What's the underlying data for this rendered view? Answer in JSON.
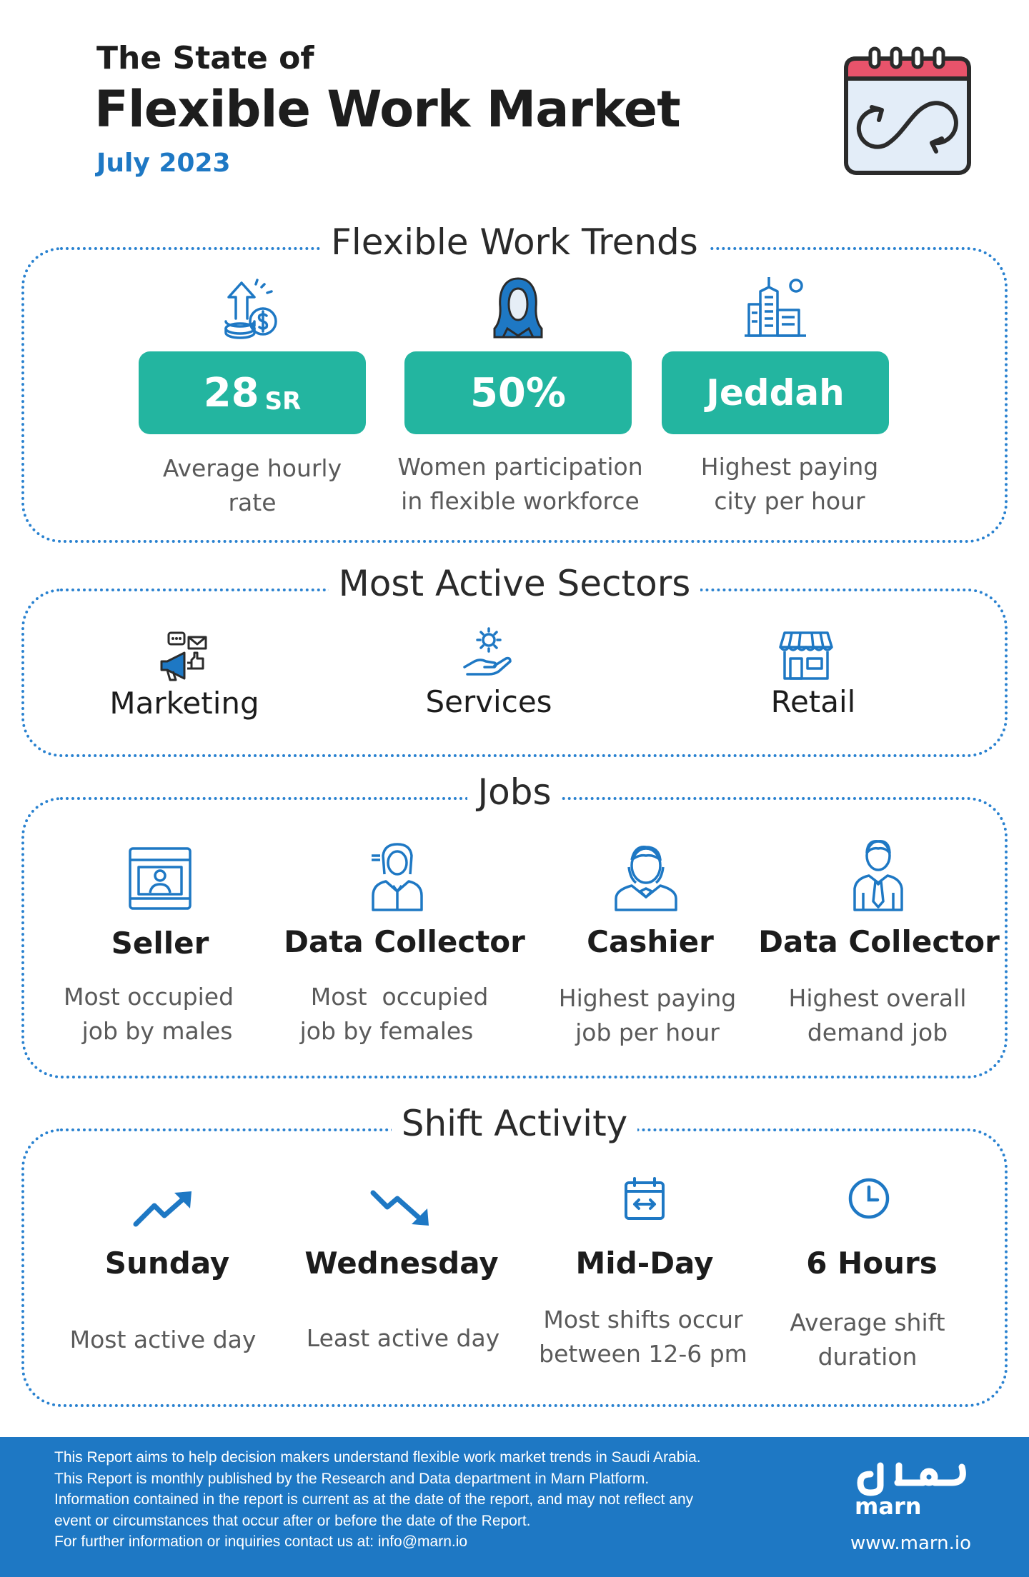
{
  "header": {
    "subtitle": "The State of",
    "title": "Flexible Work Market",
    "date": "July 2023",
    "icon": "calendar-cycle-icon"
  },
  "trends": {
    "title": "Flexible Work Trends",
    "items": [
      {
        "value": "28",
        "unit": "SR",
        "caption_1": "Average hourly",
        "caption_2": "rate",
        "icon": "money-growth-icon"
      },
      {
        "value": "50%",
        "caption_1": "Women participation",
        "caption_2": "in flexible workforce",
        "icon": "woman-hijab-icon"
      },
      {
        "value": "Jeddah",
        "caption_1": "Highest paying",
        "caption_2": "city per hour",
        "icon": "city-buildings-icon"
      }
    ]
  },
  "sectors": {
    "title": "Most Active Sectors",
    "items": [
      {
        "label": "Marketing",
        "icon": "megaphone-icon"
      },
      {
        "label": "Services",
        "icon": "service-hand-gear-icon"
      },
      {
        "label": "Retail",
        "icon": "storefront-icon"
      }
    ]
  },
  "jobs": {
    "title": "Jobs",
    "items": [
      {
        "label": "Seller",
        "caption_1": "Most occupied",
        "caption_2": "job by males",
        "icon": "seller-booth-icon"
      },
      {
        "label": "Data Collector",
        "caption_1": "Most  occupied",
        "caption_2": "job by females",
        "icon": "female-worker-icon"
      },
      {
        "label": "Cashier",
        "caption_1": "Highest paying",
        "caption_2": "job per hour",
        "icon": "cashier-icon"
      },
      {
        "label": "Data Collector",
        "caption_1": "Highest overall",
        "caption_2": "demand job",
        "icon": "male-worker-icon"
      }
    ]
  },
  "shifts": {
    "title": "Shift Activity",
    "items": [
      {
        "label": "Sunday",
        "caption_1": "Most active day",
        "caption_2": "",
        "icon": "trend-up-icon"
      },
      {
        "label": "Wednesday",
        "caption_1": "Least active day",
        "caption_2": "",
        "icon": "trend-down-icon"
      },
      {
        "label": "Mid-Day",
        "caption_1": "Most shifts occur",
        "caption_2": "between 12-6 pm",
        "icon": "calendar-range-icon"
      },
      {
        "label": "6 Hours",
        "caption_1": "Average shift",
        "caption_2": "duration",
        "icon": "clock-icon"
      }
    ]
  },
  "footer": {
    "lines": [
      "This Report aims to help decision makers understand flexible work market trends in Saudi Arabia.",
      "This Report is monthly published by the Research and Data department in Marn Platform.",
      "Information contained in the report is current as at the date of the report, and may not reflect any",
      "event or circumstances that occur after or before the date of the Report.",
      "For further information or inquiries contact us at: info@marn.io"
    ],
    "brand": "marn",
    "url": "www.marn.io",
    "logo": "marn-logo-icon"
  },
  "colors": {
    "accent_blue": "#1e78c4",
    "teal": "#23b5a0",
    "dotted_border": "#2a82d0",
    "calendar_red": "#e8536b",
    "calendar_fill": "#e3edf8"
  }
}
